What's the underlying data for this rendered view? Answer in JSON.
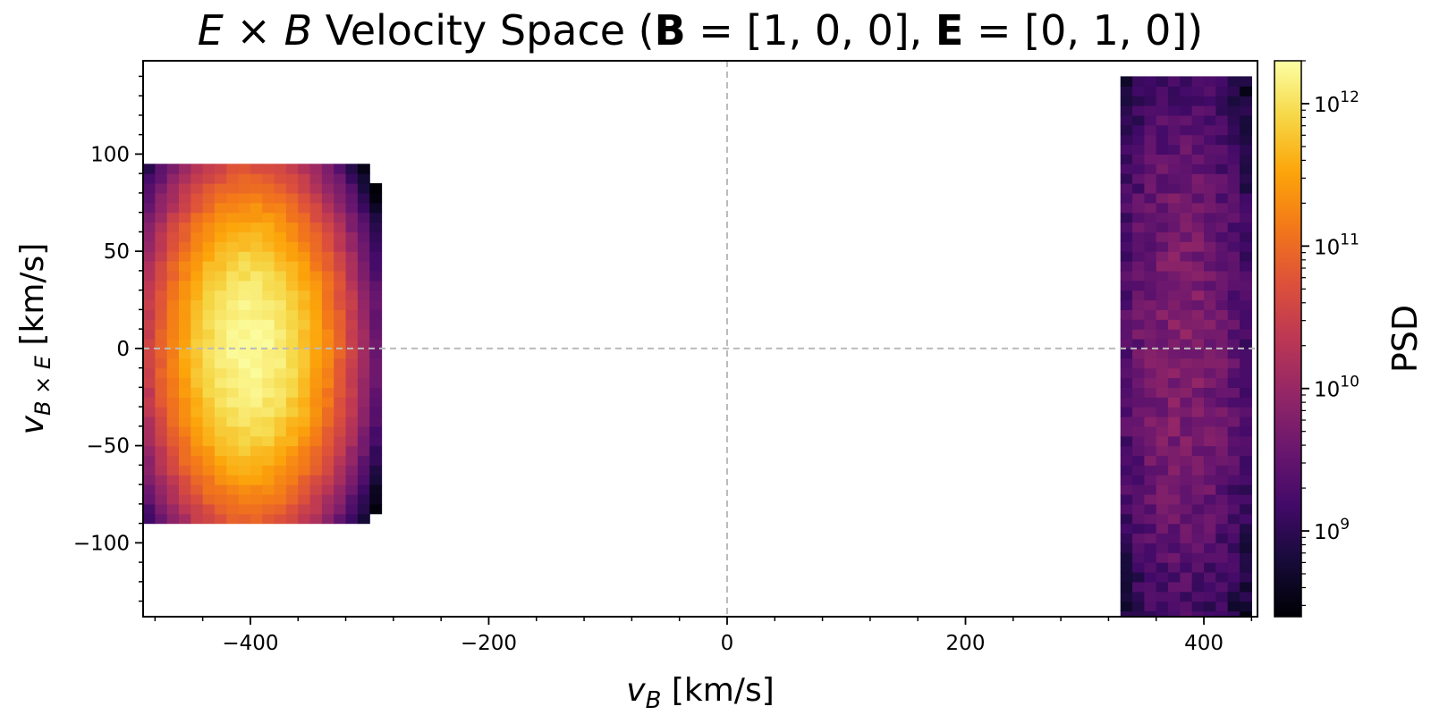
{
  "chart_data": {
    "type": "heatmap",
    "title": "E × B Velocity Space (B = [1, 0, 0], E = [0, 1, 0])",
    "title_parts": {
      "e1": "E",
      "times": " × ",
      "b1": "B",
      "velocity": " Velocity Space (",
      "b2": "B",
      "eq1": " = [1, 0, 0], ",
      "e2": "E",
      "eq2": " = [0, 1, 0])"
    },
    "xlabel": "v_B [km/s]",
    "xlabel_parts": {
      "var": "v",
      "sub": "B",
      "unit": " [km/s]"
    },
    "ylabel": "v_B×E [km/s]",
    "ylabel_parts": {
      "var": "v",
      "sub": "B × E",
      "unit": " [km/s]"
    },
    "xlim": [
      -490,
      445
    ],
    "ylim": [
      -138,
      148
    ],
    "xticks": [
      -400,
      -200,
      0,
      200,
      400
    ],
    "xtick_labels": [
      "−400",
      "−200",
      "0",
      "200",
      "400"
    ],
    "yticks": [
      -100,
      -50,
      0,
      50,
      100
    ],
    "ytick_labels": [
      "−100",
      "−50",
      "0",
      "50",
      "100"
    ],
    "reference_lines": {
      "x": 0,
      "y": 0,
      "style": "dashed",
      "color": "#bbbbbb"
    },
    "bin_size": [
      10,
      5
    ],
    "colormap": "inferno",
    "colorbar": {
      "label": "PSD",
      "scale": "log",
      "range": [
        250000000,
        2000000000000
      ],
      "ticks": [
        1000000000,
        10000000000,
        100000000000,
        1000000000000
      ],
      "tick_labels": [
        {
          "base": "10",
          "exp": "9"
        },
        {
          "base": "10",
          "exp": "10"
        },
        {
          "base": "10",
          "exp": "11"
        },
        {
          "base": "10",
          "exp": "12"
        }
      ]
    },
    "populations": [
      {
        "center": [
          -400,
          0
        ],
        "spread": [
          30,
          35
        ],
        "peak_psd": 1800000000000,
        "x_range": [
          -482,
          -298
        ],
        "y_range": [
          -86,
          92
        ],
        "noise": 0.18
      },
      {
        "center": [
          382,
          0
        ],
        "spread": [
          35,
          85
        ],
        "peak_psd": 6000000000,
        "x_range": [
          332,
          438
        ],
        "y_range": [
          -136,
          138
        ],
        "noise": 0.55
      }
    ]
  }
}
